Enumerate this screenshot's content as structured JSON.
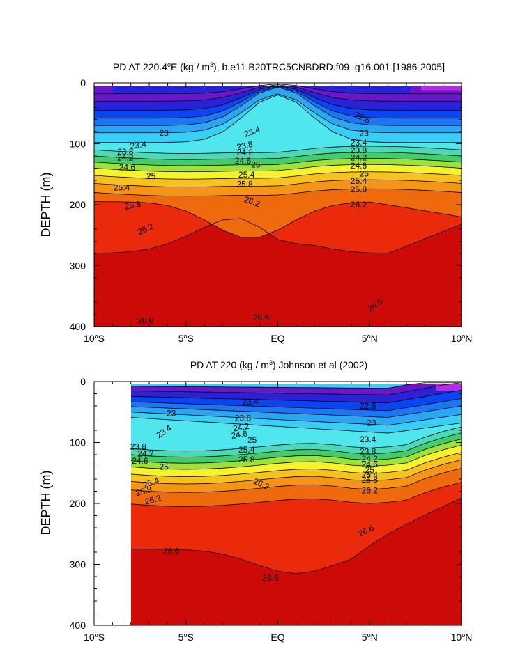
{
  "chart_data": [
    {
      "type": "contour",
      "title": "PD AT 220.4°E (kg / m³), b.e11.B20TRC5CNBDRD.f09_g16.001 [1986-2005]",
      "title_parts": {
        "pre": "PD AT 220.4",
        "sup1": "o",
        "mid": "E (kg / m",
        "sup2": "3",
        "post": "), b.e11.B20TRC5CNBDRD.f09_g16.001 [1986-2005]"
      },
      "ylabel": "DEPTH (m)",
      "xlabel": "",
      "xlim": [
        -10,
        10
      ],
      "ylim": [
        0,
        400
      ],
      "y_inverted": true,
      "x_ticks": [
        {
          "v": -10,
          "pre": "10",
          "sup": "o",
          "post": "S"
        },
        {
          "v": -5,
          "pre": "5",
          "sup": "o",
          "post": "S"
        },
        {
          "v": 0,
          "pre": "EQ",
          "sup": "",
          "post": ""
        },
        {
          "v": 5,
          "pre": "5",
          "sup": "o",
          "post": "N"
        },
        {
          "v": 10,
          "pre": "10",
          "sup": "o",
          "post": "N"
        }
      ],
      "y_ticks": [
        0,
        100,
        200,
        300,
        400
      ],
      "data_lat_range": [
        -10,
        10
      ],
      "contour_levels": [
        22.6,
        23,
        23.4,
        23.8,
        24.2,
        24.6,
        25,
        25.4,
        25.8,
        26.2,
        26.6
      ],
      "contour_labels": [
        {
          "text": "22.6",
          "x": 4.6,
          "y": 57,
          "rot": 25
        },
        {
          "text": "23",
          "x": -6.2,
          "y": 82,
          "rot": 0
        },
        {
          "text": "23.4",
          "x": -7.6,
          "y": 102,
          "rot": -8
        },
        {
          "text": "23.8",
          "x": -8.3,
          "y": 113,
          "rot": 0
        },
        {
          "text": "24.2",
          "x": -8.3,
          "y": 123,
          "rot": 0
        },
        {
          "text": "24.6",
          "x": -8.2,
          "y": 139,
          "rot": 0
        },
        {
          "text": "25",
          "x": -6.9,
          "y": 153,
          "rot": 0
        },
        {
          "text": "25.4",
          "x": -8.5,
          "y": 172,
          "rot": 0
        },
        {
          "text": "25.8",
          "x": -7.9,
          "y": 201,
          "rot": -10
        },
        {
          "text": "26.2",
          "x": -7.2,
          "y": 240,
          "rot": -25
        },
        {
          "text": "26.6",
          "x": -7.2,
          "y": 390,
          "rot": 0
        },
        {
          "text": "23.4",
          "x": -1.4,
          "y": 80,
          "rot": -22
        },
        {
          "text": "23.8",
          "x": -1.8,
          "y": 103,
          "rot": -12
        },
        {
          "text": "24.2",
          "x": -1.8,
          "y": 114,
          "rot": 0
        },
        {
          "text": "24.6",
          "x": -1.9,
          "y": 128,
          "rot": 0
        },
        {
          "text": "25",
          "x": -1.2,
          "y": 134,
          "rot": 0
        },
        {
          "text": "25.4",
          "x": -1.7,
          "y": 151,
          "rot": 0
        },
        {
          "text": "25.8",
          "x": -1.8,
          "y": 166,
          "rot": 0
        },
        {
          "text": "26.2",
          "x": -1.4,
          "y": 195,
          "rot": 20
        },
        {
          "text": "26.6",
          "x": -0.9,
          "y": 385,
          "rot": 0
        },
        {
          "text": "23",
          "x": 4.7,
          "y": 83,
          "rot": 0
        },
        {
          "text": "23.4",
          "x": 4.4,
          "y": 98,
          "rot": 0
        },
        {
          "text": "23.8",
          "x": 4.4,
          "y": 111,
          "rot": 0
        },
        {
          "text": "24.2",
          "x": 4.4,
          "y": 123,
          "rot": 0
        },
        {
          "text": "24.6",
          "x": 4.4,
          "y": 136,
          "rot": 0
        },
        {
          "text": "25",
          "x": 4.7,
          "y": 149,
          "rot": 0
        },
        {
          "text": "25.4",
          "x": 4.4,
          "y": 161,
          "rot": 0
        },
        {
          "text": "25.8",
          "x": 4.4,
          "y": 175,
          "rot": 0
        },
        {
          "text": "26.2",
          "x": 4.4,
          "y": 200,
          "rot": 0
        },
        {
          "text": "26.6",
          "x": 5.3,
          "y": 365,
          "rot": -35
        }
      ]
    },
    {
      "type": "contour",
      "title": "PD AT 220 (kg / m³) Johnson et al (2002)",
      "title_parts": {
        "pre": "PD AT 220 (kg / m",
        "sup1": "",
        "mid": "",
        "sup2": "3",
        "post": ") Johnson et al (2002)"
      },
      "ylabel": "DEPTH (m)",
      "xlabel": "",
      "xlim": [
        -10,
        10
      ],
      "ylim": [
        0,
        400
      ],
      "y_inverted": true,
      "x_ticks": [
        {
          "v": -10,
          "pre": "10",
          "sup": "o",
          "post": "S"
        },
        {
          "v": -5,
          "pre": "5",
          "sup": "o",
          "post": "S"
        },
        {
          "v": 0,
          "pre": "EQ",
          "sup": "",
          "post": ""
        },
        {
          "v": 5,
          "pre": "5",
          "sup": "o",
          "post": "N"
        },
        {
          "v": 10,
          "pre": "10",
          "sup": "o",
          "post": "N"
        }
      ],
      "y_ticks": [
        0,
        100,
        200,
        300,
        400
      ],
      "data_lat_range": [
        -8,
        10
      ],
      "contour_levels": [
        22.6,
        23,
        23.4,
        23.8,
        24.2,
        24.6,
        25,
        25.4,
        25.8,
        26.2,
        26.6
      ],
      "contour_labels": [
        {
          "text": "23",
          "x": -5.8,
          "y": 52,
          "rot": 0
        },
        {
          "text": "23.4",
          "x": -6.2,
          "y": 82,
          "rot": -35
        },
        {
          "text": "23.8",
          "x": -7.6,
          "y": 107,
          "rot": 0
        },
        {
          "text": "24.2",
          "x": -7.2,
          "y": 118,
          "rot": 0
        },
        {
          "text": "24.6",
          "x": -7.5,
          "y": 130,
          "rot": 0
        },
        {
          "text": "25",
          "x": -6.2,
          "y": 140,
          "rot": 0
        },
        {
          "text": "25.4",
          "x": -6.9,
          "y": 166,
          "rot": -20
        },
        {
          "text": "25.8",
          "x": -7.3,
          "y": 180,
          "rot": -15
        },
        {
          "text": "26.2",
          "x": -6.8,
          "y": 194,
          "rot": -15
        },
        {
          "text": "26.6",
          "x": -5.8,
          "y": 278,
          "rot": 0
        },
        {
          "text": "23.4",
          "x": -1.5,
          "y": 33,
          "rot": 0
        },
        {
          "text": "23.8",
          "x": -1.9,
          "y": 60,
          "rot": 0
        },
        {
          "text": "24.2",
          "x": -2.0,
          "y": 75,
          "rot": -10
        },
        {
          "text": "24.6",
          "x": -2.1,
          "y": 87,
          "rot": -10
        },
        {
          "text": "25",
          "x": -1.4,
          "y": 96,
          "rot": 0
        },
        {
          "text": "25.4",
          "x": -1.7,
          "y": 112,
          "rot": 0
        },
        {
          "text": "25.8",
          "x": -1.7,
          "y": 128,
          "rot": 0
        },
        {
          "text": "26.2",
          "x": -0.9,
          "y": 168,
          "rot": 25
        },
        {
          "text": "26.6",
          "x": -0.4,
          "y": 322,
          "rot": 0
        },
        {
          "text": "22.6",
          "x": 4.9,
          "y": 40,
          "rot": 0
        },
        {
          "text": "23",
          "x": 5.1,
          "y": 68,
          "rot": 0
        },
        {
          "text": "23.4",
          "x": 4.9,
          "y": 95,
          "rot": 0
        },
        {
          "text": "23.8",
          "x": 4.9,
          "y": 115,
          "rot": 0
        },
        {
          "text": "24.2",
          "x": 5.0,
          "y": 127,
          "rot": 0
        },
        {
          "text": "24.6",
          "x": 5.0,
          "y": 136,
          "rot": 0
        },
        {
          "text": "25",
          "x": 5.0,
          "y": 145,
          "rot": 0
        },
        {
          "text": "25.4",
          "x": 5.0,
          "y": 153,
          "rot": 0
        },
        {
          "text": "25.8",
          "x": 5.0,
          "y": 161,
          "rot": 0
        },
        {
          "text": "26.2",
          "x": 5.0,
          "y": 179,
          "rot": 0
        },
        {
          "text": "26.6",
          "x": 4.8,
          "y": 245,
          "rot": -25
        }
      ]
    }
  ],
  "colors": {
    "bands": [
      "#6a17c9",
      "#2a22d6",
      "#0b44f2",
      "#1a76f5",
      "#2aa6f5",
      "#37cff5",
      "#4fe6ee",
      "#4cd9b7",
      "#43cd6a",
      "#9ee13b",
      "#f6f22e",
      "#f7c21f",
      "#f59516",
      "#ef6a0d",
      "#ea2a0a",
      "#cc0a08"
    ],
    "purple_top": "#b92ae6",
    "line": "#000000"
  }
}
